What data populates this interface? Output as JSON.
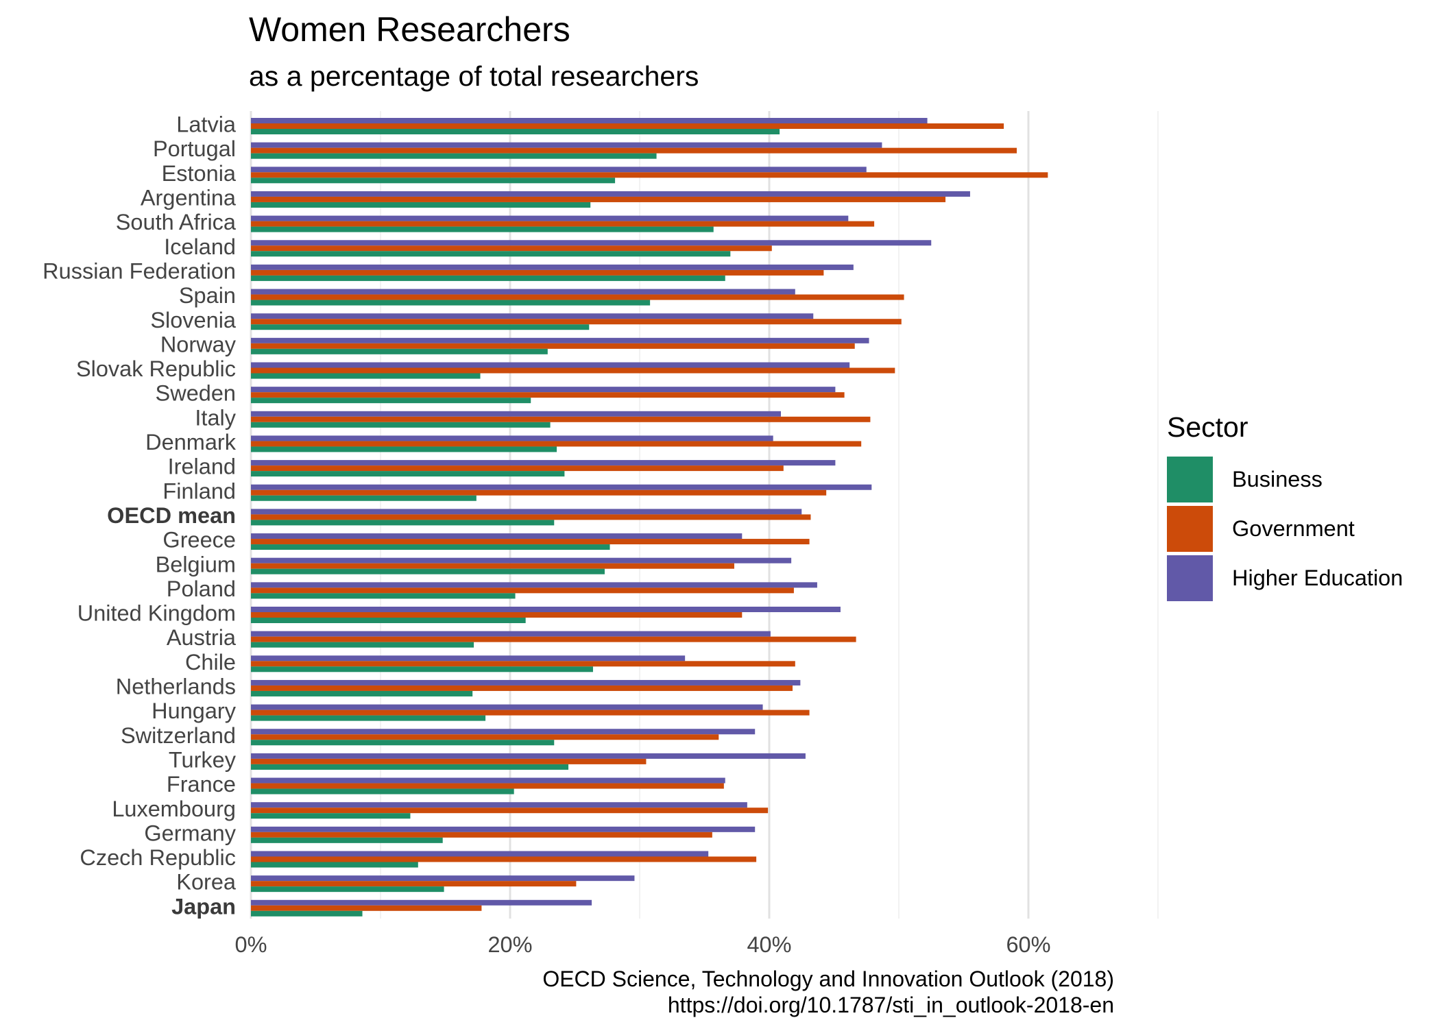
{
  "chart_data": {
    "type": "bar",
    "orientation": "horizontal",
    "title": "Women Researchers",
    "subtitle": "as a percentage of total researchers",
    "xlim": [
      0,
      70
    ],
    "x_ticks": [
      0,
      20,
      40,
      60
    ],
    "x_tick_labels": [
      "0%",
      "20%",
      "40%",
      "60%"
    ],
    "grid": "vertical major",
    "legend": {
      "title": "Sector",
      "position": "right"
    },
    "bold_categories": [
      "OECD mean",
      "Japan"
    ],
    "categories": [
      "Latvia",
      "Portugal",
      "Estonia",
      "Argentina",
      "South Africa",
      "Iceland",
      "Russian Federation",
      "Spain",
      "Slovenia",
      "Norway",
      "Slovak Republic",
      "Sweden",
      "Italy",
      "Denmark",
      "Ireland",
      "Finland",
      "OECD mean",
      "Greece",
      "Belgium",
      "Poland",
      "United Kingdom",
      "Austria",
      "Chile",
      "Netherlands",
      "Hungary",
      "Switzerland",
      "Turkey",
      "France",
      "Luxembourg",
      "Germany",
      "Czech Republic",
      "Korea",
      "Japan"
    ],
    "series": [
      {
        "name": "Higher Education",
        "color": "#6159a8",
        "values": [
          52.2,
          48.7,
          47.5,
          55.5,
          46.1,
          52.5,
          46.5,
          42.0,
          43.4,
          47.7,
          46.2,
          45.1,
          40.9,
          40.3,
          45.1,
          47.9,
          42.5,
          37.9,
          41.7,
          43.7,
          45.5,
          40.1,
          33.5,
          42.4,
          39.5,
          38.9,
          42.8,
          36.6,
          38.3,
          38.9,
          35.3,
          29.6,
          26.3
        ]
      },
      {
        "name": "Government",
        "color": "#cc4b0a",
        "values": [
          58.1,
          59.1,
          61.5,
          53.6,
          48.1,
          40.2,
          44.2,
          50.4,
          50.2,
          46.6,
          49.7,
          45.8,
          47.8,
          47.1,
          41.1,
          44.4,
          43.2,
          43.1,
          37.3,
          41.9,
          37.9,
          46.7,
          42.0,
          41.8,
          43.1,
          36.1,
          30.5,
          36.5,
          39.9,
          35.6,
          39.0,
          25.1,
          17.8
        ]
      },
      {
        "name": "Business",
        "color": "#1f8e66",
        "values": [
          40.8,
          31.3,
          28.1,
          26.2,
          35.7,
          37.0,
          36.6,
          30.8,
          26.1,
          22.9,
          17.7,
          21.6,
          23.1,
          23.6,
          24.2,
          17.4,
          23.4,
          27.7,
          27.3,
          20.4,
          21.2,
          17.2,
          26.4,
          17.1,
          18.1,
          23.4,
          24.5,
          20.3,
          12.3,
          14.8,
          12.9,
          14.9,
          8.6
        ]
      }
    ],
    "caption": [
      "OECD Science, Technology and Innovation Outlook (2018)",
      "https://doi.org/10.1787/sti_in_outlook-2018-en"
    ]
  }
}
